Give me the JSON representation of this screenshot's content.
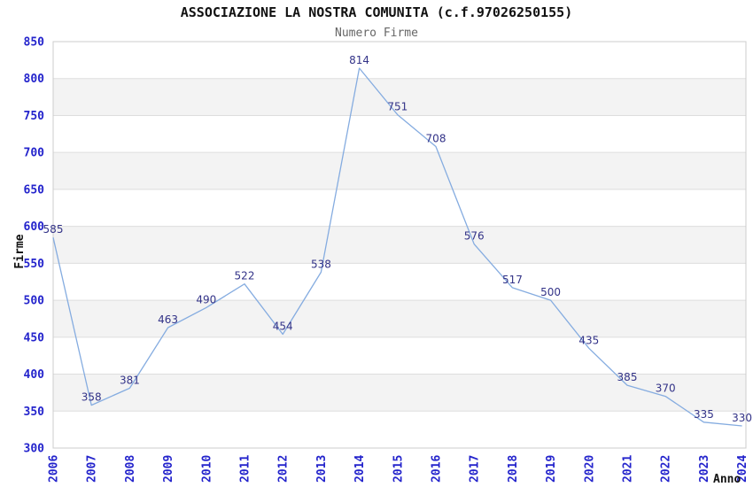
{
  "chart_data": {
    "type": "line",
    "title": "ASSOCIAZIONE LA NOSTRA COMUNITA (c.f.97026250155)",
    "subtitle": "Numero Firme",
    "xlabel": "Anno",
    "ylabel": "Firme",
    "categories": [
      "2006",
      "2007",
      "2008",
      "2009",
      "2010",
      "2011",
      "2012",
      "2013",
      "2014",
      "2015",
      "2016",
      "2017",
      "2018",
      "2019",
      "2020",
      "2021",
      "2022",
      "2023",
      "2024"
    ],
    "values": [
      585,
      358,
      381,
      463,
      490,
      522,
      454,
      538,
      814,
      751,
      708,
      576,
      517,
      500,
      435,
      385,
      370,
      335,
      330
    ],
    "ylim": [
      300,
      850
    ],
    "ytick_step": 50,
    "grid": "horizontal-gridlines-with-alternating-bands",
    "legend_position": "none",
    "data_labels_visible": true,
    "colors": {
      "line": "#85ACE0",
      "data_label": "#333388",
      "tick_label": "#2424CC",
      "axis_title": "#111111",
      "title": "#111111",
      "subtitle": "#666666",
      "band_fill": "#F3F3F3",
      "gridline": "#DDDDDD",
      "plot_border": "#CCCCCC",
      "background": "#FFFFFF"
    }
  }
}
